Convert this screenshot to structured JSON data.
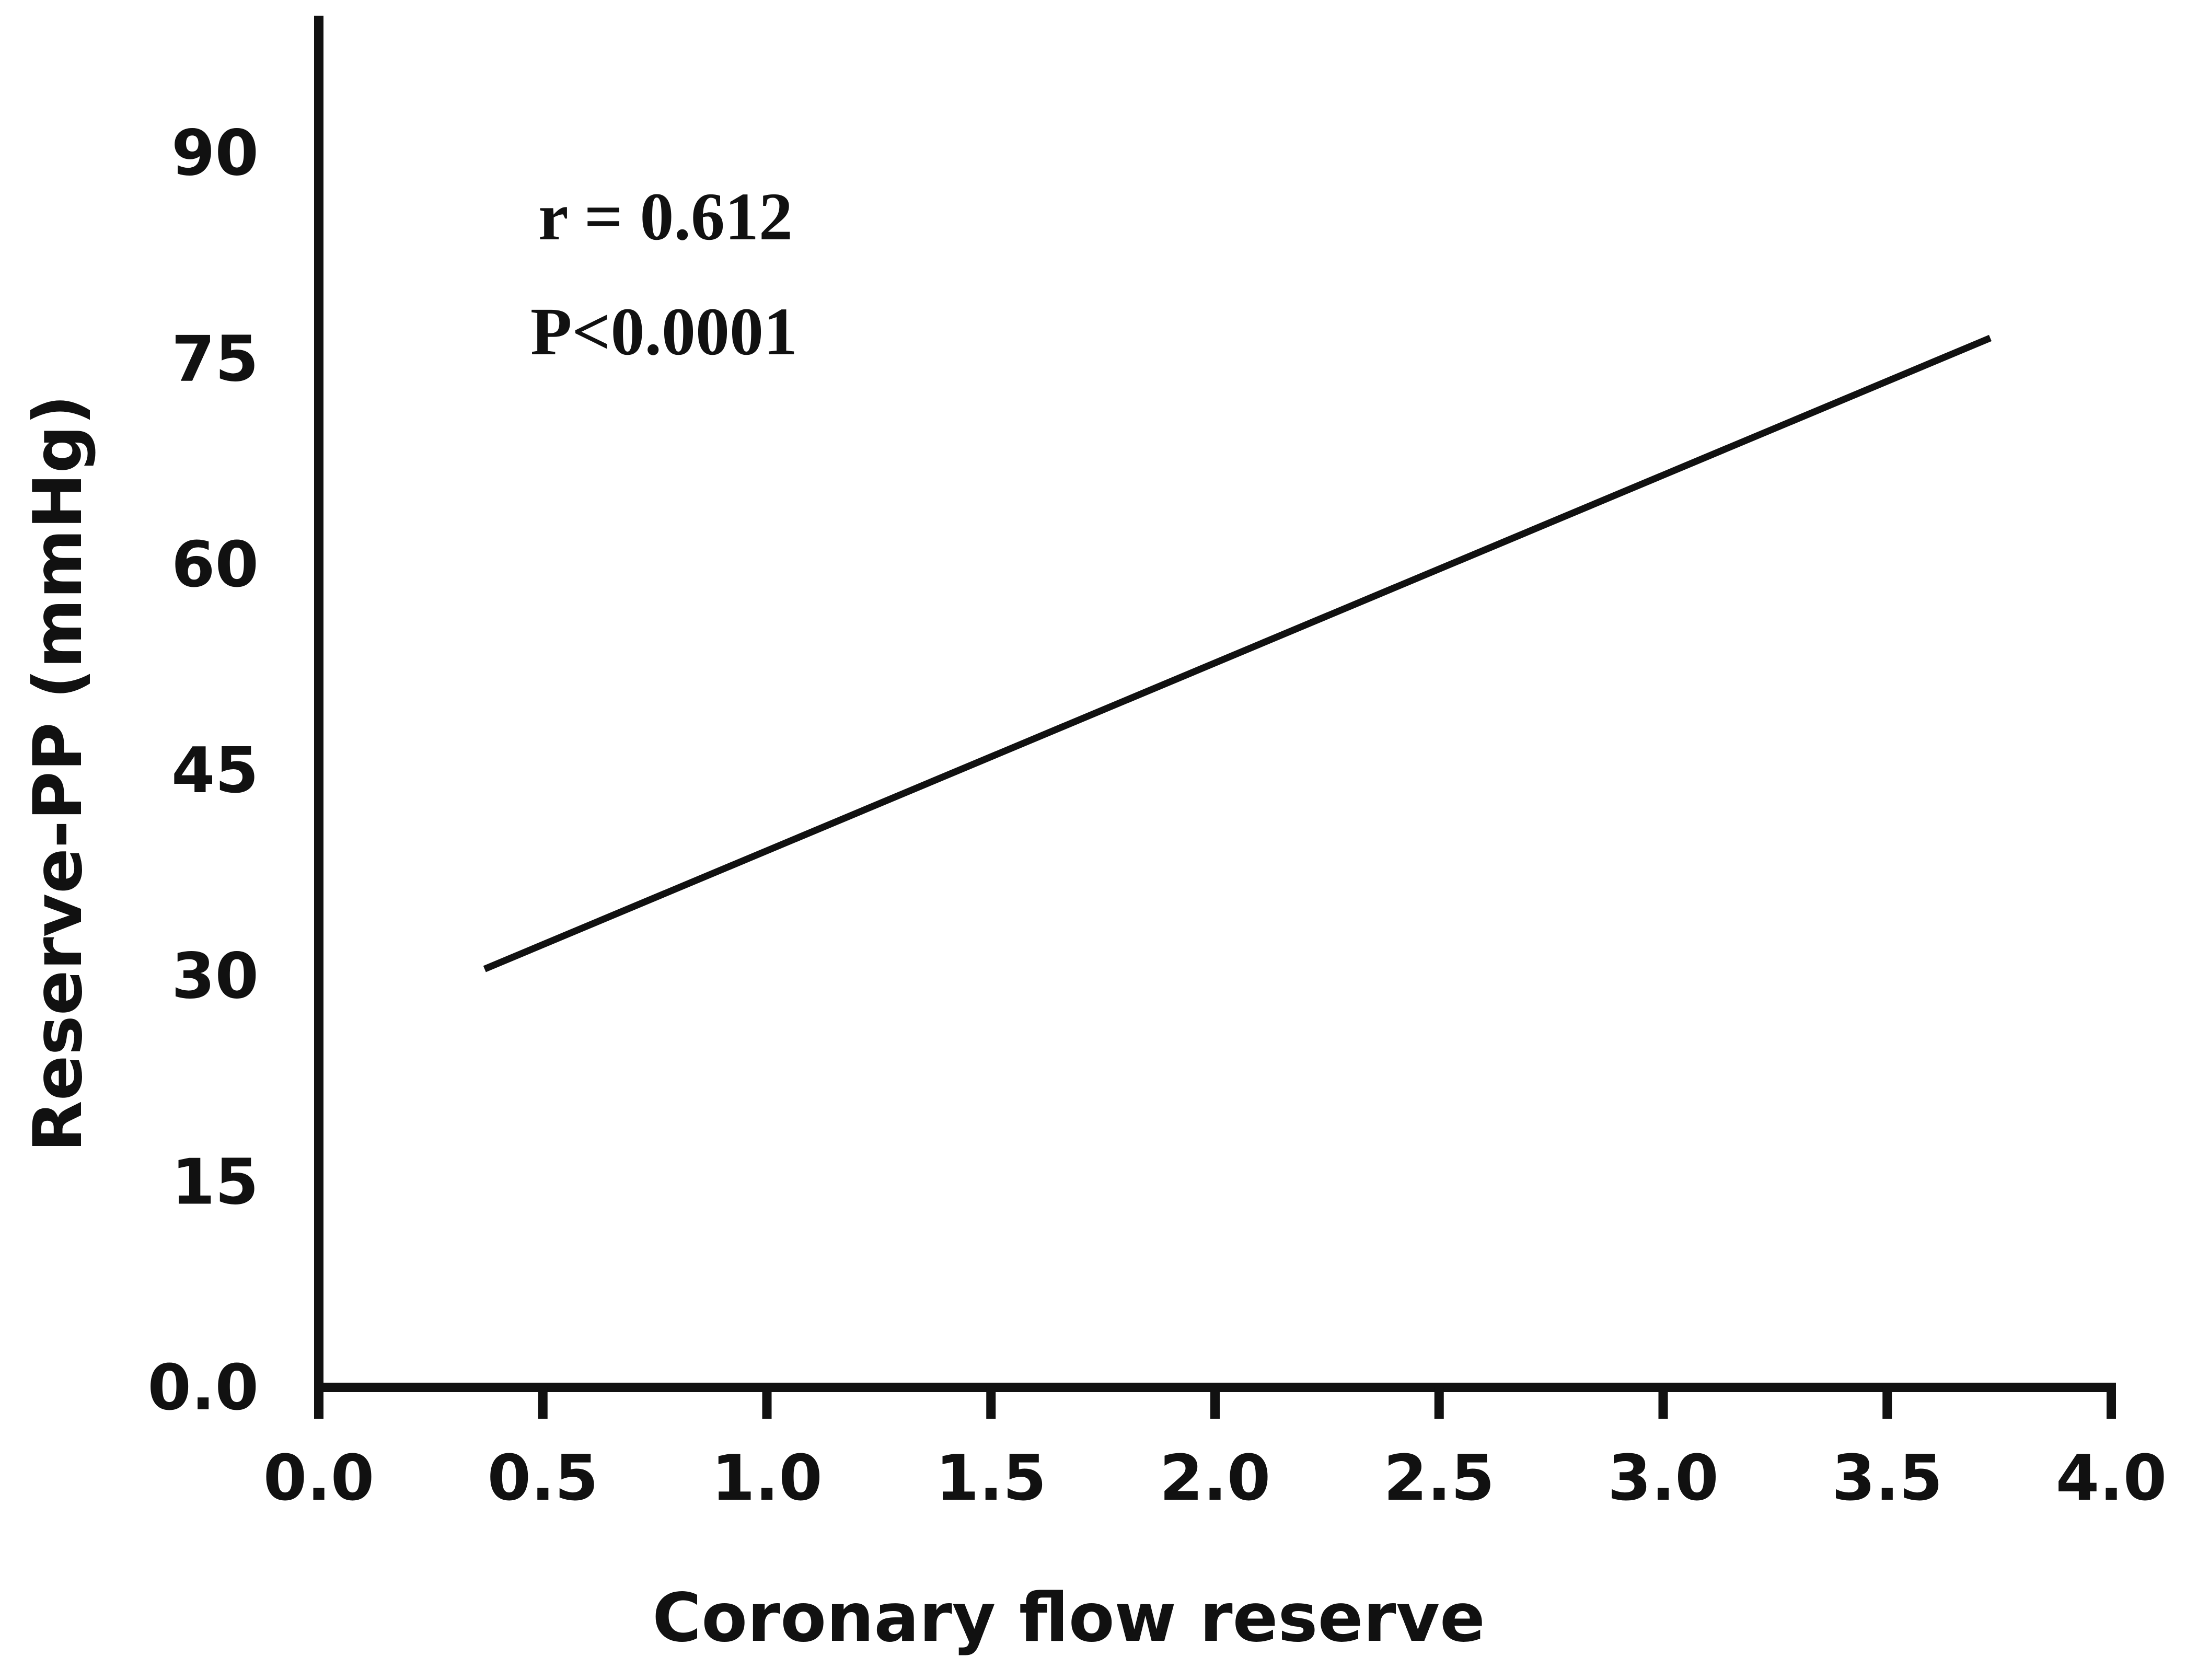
{
  "chart_data": {
    "type": "line",
    "title": "",
    "xlabel": "Coronary flow reserve",
    "ylabel": "Reserve-PP (mmHg)",
    "xlim": [
      0,
      4
    ],
    "ylim": [
      0,
      100
    ],
    "x_ticks": [
      "0.0",
      "0.5",
      "1.0",
      "1.5",
      "2.0",
      "2.5",
      "3.0",
      "3.5",
      "4.0"
    ],
    "y_ticks": [
      {
        "value": 0,
        "label": "0.0"
      },
      {
        "value": 15,
        "label": "15"
      },
      {
        "value": 30,
        "label": "30"
      },
      {
        "value": 45,
        "label": "45"
      },
      {
        "value": 60,
        "label": "60"
      },
      {
        "value": 75,
        "label": "75"
      },
      {
        "value": 90,
        "label": "90"
      }
    ],
    "grid": false,
    "series": [
      {
        "points": [
          {
            "x": 0.37,
            "y": 30.5
          },
          {
            "x": 3.73,
            "y": 76.5
          }
        ]
      }
    ],
    "annotations": [
      "r = 0.612",
      "P<0.0001"
    ],
    "line_color": "#111111",
    "axis_color": "#111111"
  }
}
